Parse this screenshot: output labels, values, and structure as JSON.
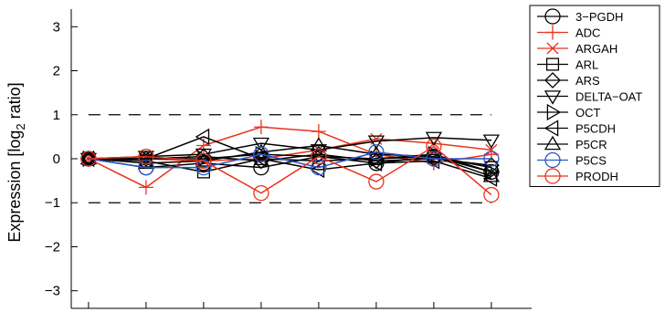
{
  "chart_data": {
    "type": "line",
    "title": "",
    "xlabel": "",
    "ylabel_main": "Expression [log",
    "ylabel_sub": "2",
    "ylabel_tail": " ratio]",
    "ylim": [
      -3.4,
      3.4
    ],
    "yticks": [
      -3,
      -2,
      -1,
      0,
      1,
      2,
      3
    ],
    "ytick_labels": [
      "−3",
      "−2",
      "−1",
      "0",
      "1",
      "2",
      "3"
    ],
    "xlim": [
      0.7,
      8.7
    ],
    "x": [
      1,
      2,
      3,
      4,
      5,
      6,
      7,
      8
    ],
    "reference_lines": [
      1,
      -1
    ],
    "legend_position": "top-right",
    "series": [
      {
        "name": "3−PGDH",
        "marker": "circle",
        "color": "#000000",
        "values": [
          0,
          -0.2,
          -0.1,
          -0.2,
          0.05,
          -0.1,
          0.05,
          -0.3
        ]
      },
      {
        "name": "ADC",
        "marker": "plus",
        "color": "#e8331c",
        "values": [
          0,
          -0.65,
          0.3,
          0.72,
          0.62,
          0.1,
          -0.1,
          0.1
        ]
      },
      {
        "name": "ARGAH",
        "marker": "x",
        "color": "#e8331c",
        "values": [
          0,
          0.0,
          -0.05,
          0.0,
          0.2,
          0.45,
          0.35,
          0.2
        ]
      },
      {
        "name": "ARL",
        "marker": "square",
        "color": "#000000",
        "values": [
          0,
          -0.05,
          -0.3,
          0.0,
          -0.05,
          0.0,
          0.05,
          -0.2
        ]
      },
      {
        "name": "ARS",
        "marker": "diamond",
        "color": "#000000",
        "values": [
          0,
          0.0,
          0.05,
          -0.05,
          0.1,
          -0.05,
          0.0,
          -0.15
        ]
      },
      {
        "name": "DELTA−OAT",
        "marker": "triangle-down",
        "color": "#000000",
        "values": [
          0,
          0.05,
          0.1,
          0.35,
          0.2,
          0.4,
          0.48,
          0.42
        ]
      },
      {
        "name": "OCT",
        "marker": "triangle-right",
        "color": "#000000",
        "values": [
          0,
          0.0,
          0.0,
          0.1,
          0.05,
          0.0,
          0.1,
          -0.3
        ]
      },
      {
        "name": "P5CDH",
        "marker": "triangle-left",
        "color": "#000000",
        "values": [
          0,
          0.0,
          0.5,
          0.0,
          -0.25,
          -0.1,
          -0.05,
          -0.45
        ]
      },
      {
        "name": "P5CR",
        "marker": "triangle-up",
        "color": "#000000",
        "values": [
          0,
          -0.1,
          -0.05,
          0.15,
          0.3,
          0.1,
          0.05,
          -0.4
        ]
      },
      {
        "name": "P5CS",
        "marker": "circle",
        "color": "#2a55c8",
        "values": [
          0,
          -0.2,
          -0.2,
          0.1,
          -0.2,
          0.15,
          0.0,
          0.0
        ]
      },
      {
        "name": "PRODH",
        "marker": "circle",
        "color": "#e8331c",
        "values": [
          0,
          0.05,
          -0.05,
          -0.78,
          0.05,
          -0.52,
          0.28,
          -0.82
        ]
      }
    ]
  }
}
